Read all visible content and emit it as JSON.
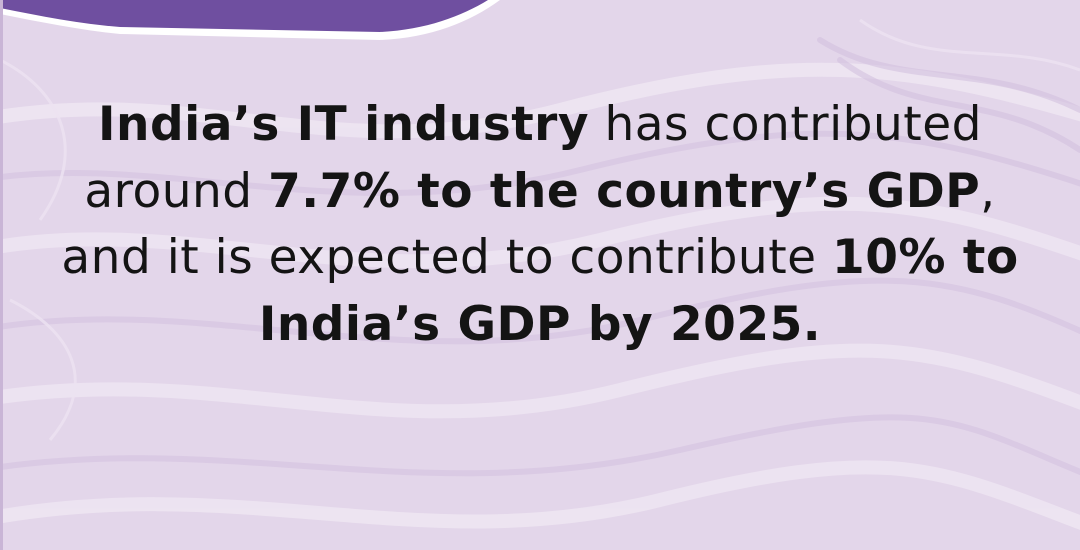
{
  "colors": {
    "background": "#e3d6ea",
    "banner": "#6f4fa0",
    "banner_edge": "#ffffff",
    "text": "#141414"
  },
  "fact": {
    "bold_1": "India’s IT industry",
    "regular_1": " has contributed around ",
    "bold_2": "7.7% to the country’s GDP",
    "regular_2": ", and it is expected to contribute ",
    "bold_3": "10% to India’s GDP by 2025."
  }
}
